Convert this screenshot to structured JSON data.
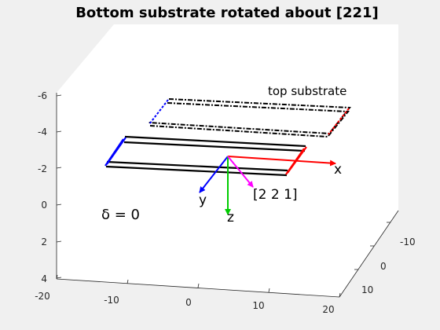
{
  "chart_data": {
    "type": "3d-line",
    "title": "Bottom substrate rotated about [221]",
    "axes": {
      "x": {
        "ticks": [
          "-20",
          "-10",
          "0",
          "10",
          "20"
        ],
        "lim": [
          -20,
          20
        ]
      },
      "y": {
        "ticks": [
          "-10",
          "0",
          "10"
        ],
        "lim": [
          -15,
          15
        ]
      },
      "z": {
        "ticks": [
          "-6",
          "-4",
          "-2",
          "0",
          "2",
          "4"
        ],
        "lim": [
          -6,
          4
        ],
        "direction": "reversed"
      }
    },
    "view": "3d perspective, z increasing downward",
    "box": true,
    "grid": false,
    "annotations": {
      "top_substrate": "top substrate",
      "x_label": "x",
      "y_label": "y",
      "z_label": "z",
      "rot_label": "[2 2 1]",
      "delta": "δ = 0"
    },
    "series": [
      {
        "id": "top-substrate-outline",
        "style": "dash-dot",
        "color": "#000000"
      },
      {
        "id": "top-substrate-left-edge",
        "style": "dashed",
        "color": "#0000ff"
      },
      {
        "id": "top-substrate-right-edge",
        "style": "dashed",
        "color": "#ff0000"
      },
      {
        "id": "bottom-substrate-outline",
        "style": "solid",
        "color": "#000000"
      },
      {
        "id": "bottom-substrate-left-edge",
        "style": "solid",
        "color": "#0000ff"
      },
      {
        "id": "bottom-substrate-right-edge",
        "style": "solid",
        "color": "#ff0000"
      },
      {
        "id": "x-axis-arrow",
        "style": "arrow",
        "color": "#ff0000"
      },
      {
        "id": "y-axis-arrow",
        "style": "arrow",
        "color": "#0000ff"
      },
      {
        "id": "z-axis-arrow",
        "style": "arrow",
        "color": "#00cc00"
      },
      {
        "id": "rotation-axis-arrow",
        "style": "arrow",
        "color": "#ff00ff"
      }
    ],
    "colors": {
      "x_axis": "#ff0000",
      "y_axis": "#0000ff",
      "z_axis": "#00cc00",
      "rotation_axis": "#ff00ff",
      "outline": "#000000",
      "axes_face": "#ffffff",
      "figure_bg": "#f0f0f0"
    }
  }
}
